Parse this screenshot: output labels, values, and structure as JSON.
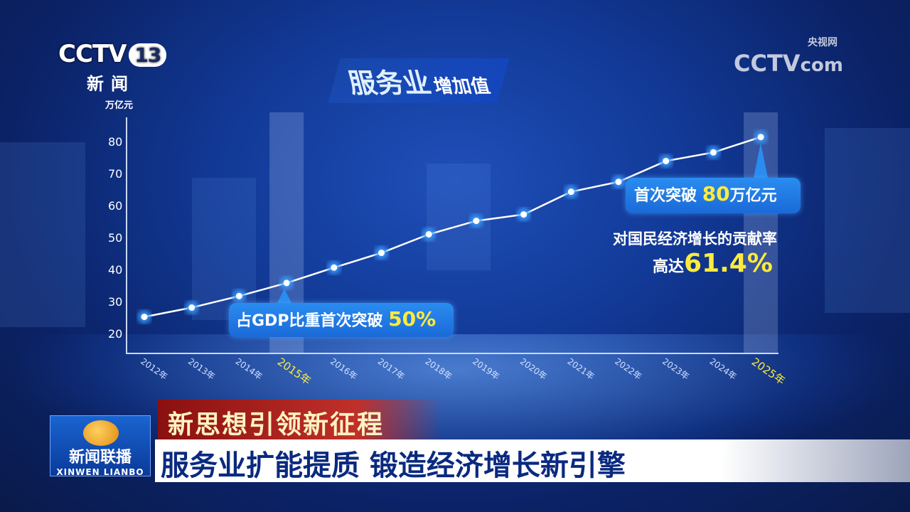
{
  "channel_logo": {
    "brand": "CCTV",
    "number": "13",
    "subtitle": "新闻"
  },
  "watermark": {
    "brand": "CCTV",
    "suffix": "com",
    "label": "央视网"
  },
  "header": {
    "title_main": "服务业",
    "title_sub": "增加值"
  },
  "callouts": {
    "c2015_text": "占GDP比重首次突破",
    "c2015_value": "50%",
    "c2025_text": "首次突破",
    "c2025_value": "80",
    "c2025_unit": "万亿元",
    "contrib_line1": "对国民经济增长的贡献率",
    "contrib_prefix": "高达",
    "contrib_value": "61.4%"
  },
  "chart_data": {
    "type": "line",
    "ylabel": "万亿元",
    "ylim": [
      20,
      80
    ],
    "yticks": [
      20,
      30,
      40,
      50,
      60,
      70,
      80
    ],
    "categories": [
      "2012年",
      "2013年",
      "2014年",
      "2015年",
      "2016年",
      "2017年",
      "2018年",
      "2019年",
      "2020年",
      "2021年",
      "2022年",
      "2023年",
      "2024年",
      "2025年"
    ],
    "values": [
      25.2,
      28.1,
      31.7,
      35.8,
      40.6,
      45.2,
      51.0,
      55.2,
      57.2,
      64.3,
      67.4,
      73.9,
      76.6,
      81.4
    ],
    "highlighted": [
      "2015年",
      "2025年"
    ],
    "grid": false,
    "colors": {
      "line": "#ffffff",
      "highlight_label": "#ffeb3b",
      "axis_label": "#d0e0ff",
      "point_glow": "#3a9cff"
    }
  },
  "lower_third": {
    "series": "新思想引领新征程",
    "headline": "服务业扩能提质 锻造经济增长新引擎",
    "program": "新闻联播",
    "program_en": "XINWEN LIANBO"
  }
}
